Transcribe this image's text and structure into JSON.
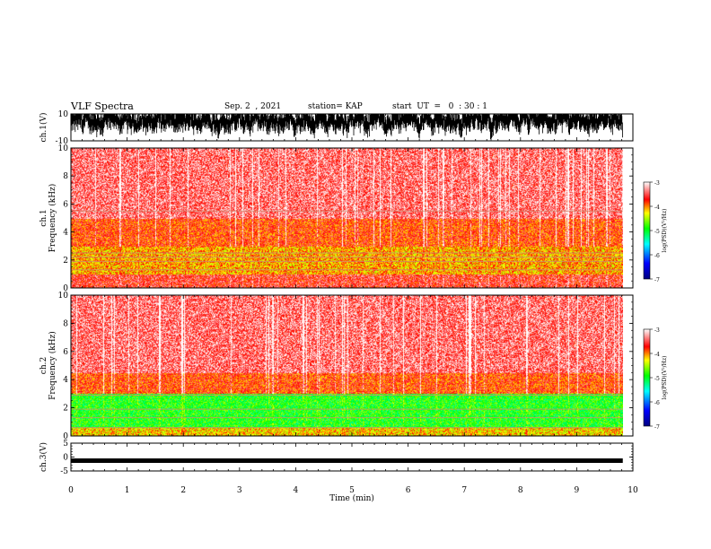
{
  "header": {
    "title": "VLF Spectra",
    "date": "Sep. 2  , 2021",
    "station": "station= KAP",
    "start": "start  UT  =   0  : 30 : 1"
  },
  "chart_data": [
    {
      "type": "line",
      "panel": "ch1-waveform",
      "ylabel": "ch.1(V)",
      "ylim": [
        -10,
        10
      ],
      "yticks": [
        "10",
        "-10"
      ],
      "xlim": [
        0,
        10
      ],
      "x_end": 9.82,
      "description_values": {
        "typical_min": -8,
        "typical_max": 10,
        "clipped_top": 10
      }
    },
    {
      "type": "heatmap",
      "panel": "ch1-spectrogram",
      "ylabel": "ch.1\nFrequency  (kHz)",
      "ylim": [
        0,
        10
      ],
      "yticks": [
        "0",
        "2",
        "4",
        "6",
        "8",
        "10"
      ],
      "xlim": [
        0,
        10
      ],
      "x_end": 9.82,
      "colorbar": {
        "label": "log(PSD)(V²/Hz)",
        "range": [
          -7,
          -3
        ],
        "ticks": [
          "-3",
          "-4",
          "-5",
          "-6",
          "-7"
        ]
      },
      "bands": [
        {
          "fmin": 0.0,
          "fmax": 1.0,
          "level": -3.6
        },
        {
          "fmin": 1.0,
          "fmax": 3.0,
          "level": -4.1
        },
        {
          "fmin": 3.0,
          "fmax": 5.0,
          "level": -3.8
        },
        {
          "fmin": 5.0,
          "fmax": 10.0,
          "level": -3.4
        }
      ],
      "lines_khz": [
        1.3,
        1.9,
        2.2,
        2.5,
        5.5
      ]
    },
    {
      "type": "heatmap",
      "panel": "ch2-spectrogram",
      "ylabel": "ch.2\nFrequency  (kHz)",
      "ylim": [
        0,
        10
      ],
      "yticks": [
        "0",
        "2",
        "4",
        "6",
        "8",
        "10"
      ],
      "xlim": [
        0,
        10
      ],
      "x_end": 9.82,
      "colorbar": {
        "label": "log(PSD)(V²/Hz)",
        "range": [
          -7,
          -3
        ],
        "ticks": [
          "-3",
          "-4",
          "-5",
          "-6",
          "-7"
        ]
      },
      "bands": [
        {
          "fmin": 0.0,
          "fmax": 0.6,
          "level": -4.2
        },
        {
          "fmin": 0.6,
          "fmax": 3.0,
          "level": -4.9
        },
        {
          "fmin": 3.0,
          "fmax": 4.5,
          "level": -3.8
        },
        {
          "fmin": 4.5,
          "fmax": 10.0,
          "level": -3.4
        }
      ],
      "lines_khz": [
        0.6,
        1.3,
        1.9,
        2.9
      ]
    },
    {
      "type": "line",
      "panel": "ch3-waveform",
      "ylabel": "ch.3(V)",
      "ylim": [
        -5,
        5
      ],
      "yticks": [
        "5",
        "0",
        "-5"
      ],
      "xlim": [
        0,
        10
      ],
      "x_end": 9.82,
      "level": -1.3
    }
  ],
  "xaxis": {
    "label": "Time  (min)",
    "ticks": [
      "0",
      "1",
      "2",
      "3",
      "4",
      "5",
      "6",
      "7",
      "8",
      "9",
      "10"
    ]
  },
  "colors": {
    "colormap": [
      "#00007f",
      "#0000ff",
      "#00ffff",
      "#00ff00",
      "#ffff00",
      "#ff0000",
      "#ffffff"
    ]
  }
}
